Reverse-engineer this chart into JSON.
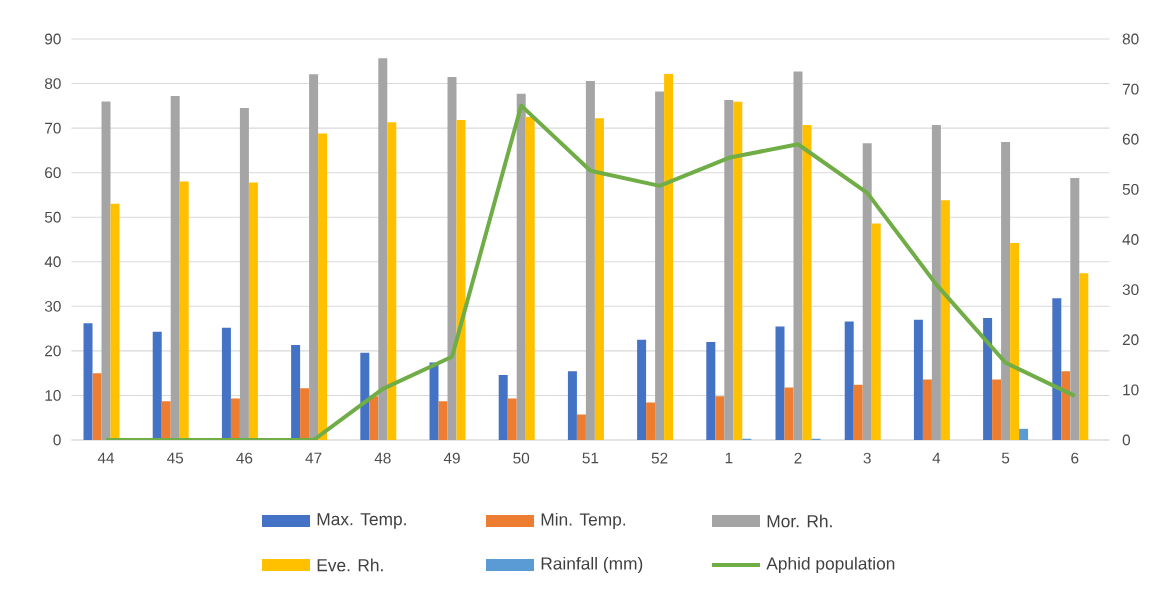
{
  "chart_data": {
    "type": "bar",
    "categories": [
      "44",
      "45",
      "46",
      "47",
      "48",
      "49",
      "50",
      "51",
      "52",
      "1",
      "2",
      "3",
      "4",
      "5",
      "6"
    ],
    "series": [
      {
        "name": "Max. Temp.",
        "color": "#4472c4",
        "values": [
          26.2,
          24.3,
          25.2,
          21.3,
          19.6,
          17.4,
          14.6,
          15.4,
          22.5,
          22.0,
          25.5,
          26.6,
          27.0,
          27.4,
          31.8
        ]
      },
      {
        "name": "Min. Temp.",
        "color": "#ed7d31",
        "values": [
          15.0,
          8.7,
          9.3,
          11.6,
          9.8,
          8.7,
          9.3,
          5.7,
          8.4,
          9.8,
          11.8,
          12.4,
          13.6,
          13.6,
          15.4
        ]
      },
      {
        "name": "Mor. Rh.",
        "color": "#a5a5a5",
        "values": [
          76.0,
          77.2,
          74.5,
          82.1,
          85.7,
          81.5,
          77.7,
          80.6,
          78.2,
          76.3,
          82.7,
          66.6,
          70.7,
          66.9,
          58.8
        ]
      },
      {
        "name": "Eve. Rh.",
        "color": "#ffc000",
        "values": [
          53.0,
          58.0,
          57.8,
          68.8,
          71.3,
          71.8,
          72.5,
          72.2,
          82.2,
          75.9,
          70.7,
          48.6,
          53.8,
          44.2,
          37.4
        ]
      },
      {
        "name": "Rainfall (mm)",
        "color": "#5b9bd5",
        "values": [
          0,
          0,
          0,
          0,
          0,
          0,
          0,
          0,
          0,
          0.3,
          0.3,
          0,
          0,
          2.5,
          0
        ]
      },
      {
        "name": "Aphid population",
        "color": "#70ad47",
        "type": "line",
        "axis": "y2",
        "values": [
          0,
          0,
          0,
          0,
          10.2,
          16.6,
          66.7,
          53.7,
          50.7,
          56.3,
          59.0,
          49.3,
          31.0,
          15.4,
          8.8
        ]
      }
    ],
    "ylim": [
      0,
      90
    ],
    "yticks": [
      0,
      10,
      20,
      30,
      40,
      50,
      60,
      70,
      80,
      90
    ],
    "y2lim": [
      0,
      80
    ],
    "y2ticks": [
      0,
      10,
      20,
      30,
      40,
      50,
      60,
      70,
      80
    ],
    "grid": "y",
    "legend": "bottom",
    "marker": "none",
    "line_style": "solid"
  }
}
